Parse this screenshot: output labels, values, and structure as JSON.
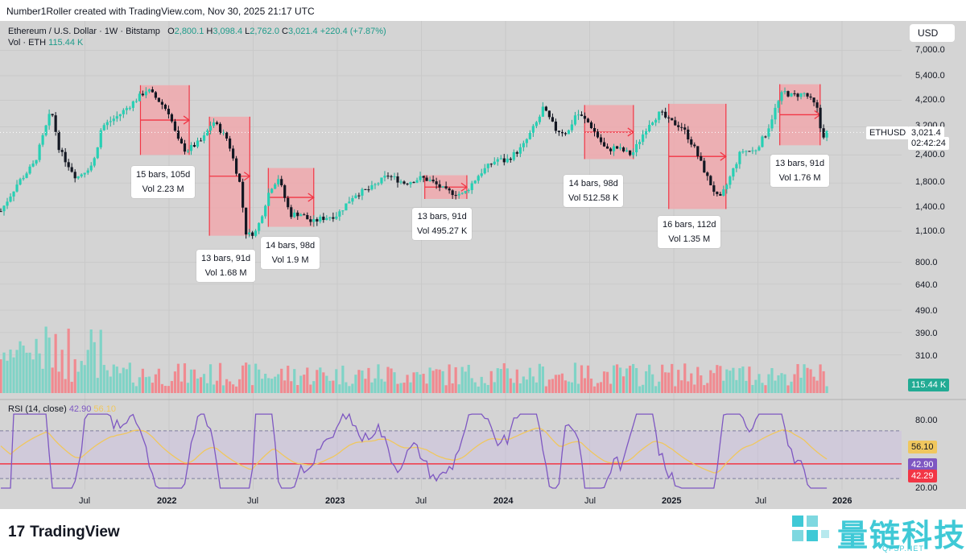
{
  "header": {
    "text": "Number1Roller created with TradingView.com, Nov 30, 2025 21:17 UTC"
  },
  "legend": {
    "symbol": "Ethereum / U.S. Dollar · 1W · Bitstamp",
    "o_label": "O",
    "o": "2,800.1",
    "h_label": "H",
    "h": "3,098.4",
    "l_label": "L",
    "l": "2,762.0",
    "c_label": "C",
    "c": "3,021.4",
    "change": "+220.4 (+7.87%)",
    "vol_label": "Vol · ETH",
    "vol": "115.44 K"
  },
  "currency_button": "USD",
  "price_tag": {
    "symbol": "ETHUSD",
    "price": "3,021.4",
    "countdown": "02:42:24"
  },
  "volume_tag": "115.44 K",
  "rsi": {
    "label": "RSI (14, close)",
    "value": "42.90",
    "ma": "56.10",
    "tags": [
      "56.10",
      "42.90",
      "42.29"
    ]
  },
  "colors": {
    "up": "#22ab94",
    "down": "#f23645",
    "box": "#f4a3a8",
    "rsi": "#7e57c2",
    "rsi_ma": "#f0c75e",
    "watermark": "#3fc9d6"
  },
  "footer": {
    "logo": "TradingView",
    "watermark": "量链科技",
    "watermark_sub": "QFSP.NET"
  },
  "chart_data": {
    "type": "candlestick",
    "title": "Ethereum / U.S. Dollar · 1W · Bitstamp",
    "scale": "log",
    "y_ticks": [
      7000,
      5400,
      4200,
      3200,
      2400,
      1800,
      1400,
      1100,
      800,
      640,
      490,
      390,
      310
    ],
    "y_tick_labels": [
      "7,000.0",
      "5,400.0",
      "4,200.0",
      "3,200.0",
      "2,400.0",
      "1,800.0",
      "1,400.0",
      "1,100.0",
      "800.0",
      "640.0",
      "490.0",
      "390.0",
      "310.0"
    ],
    "x_tick_labels": [
      "Jul",
      "2022",
      "Jul",
      "2023",
      "Jul",
      "2024",
      "Jul",
      "2025",
      "Jul",
      "2026"
    ],
    "rsi_ticks": [
      "80.00",
      "20.00"
    ],
    "price_path": [
      [
        2021.0,
        1350
      ],
      [
        2021.1,
        1800
      ],
      [
        2021.2,
        2200
      ],
      [
        2021.3,
        3800
      ],
      [
        2021.35,
        2500
      ],
      [
        2021.45,
        1900
      ],
      [
        2021.55,
        2200
      ],
      [
        2021.6,
        3200
      ],
      [
        2021.7,
        3600
      ],
      [
        2021.8,
        4200
      ],
      [
        2021.87,
        4700
      ],
      [
        2021.95,
        4100
      ],
      [
        2022.0,
        3700
      ],
      [
        2022.05,
        2800
      ],
      [
        2022.1,
        2500
      ],
      [
        2022.2,
        2800
      ],
      [
        2022.26,
        3400
      ],
      [
        2022.35,
        2800
      ],
      [
        2022.42,
        1800
      ],
      [
        2022.46,
        1050
      ],
      [
        2022.52,
        1100
      ],
      [
        2022.6,
        1700
      ],
      [
        2022.65,
        1900
      ],
      [
        2022.72,
        1300
      ],
      [
        2022.78,
        1320
      ],
      [
        2022.85,
        1200
      ],
      [
        2022.9,
        1250
      ],
      [
        2023.0,
        1300
      ],
      [
        2023.1,
        1600
      ],
      [
        2023.2,
        1700
      ],
      [
        2023.3,
        1950
      ],
      [
        2023.4,
        1800
      ],
      [
        2023.5,
        1900
      ],
      [
        2023.55,
        1850
      ],
      [
        2023.65,
        1650
      ],
      [
        2023.75,
        1600
      ],
      [
        2023.85,
        2000
      ],
      [
        2023.95,
        2300
      ],
      [
        2024.0,
        2250
      ],
      [
        2024.1,
        2600
      ],
      [
        2024.2,
        3500
      ],
      [
        2024.22,
        3900
      ],
      [
        2024.3,
        3100
      ],
      [
        2024.37,
        3000
      ],
      [
        2024.42,
        3700
      ],
      [
        2024.5,
        3300
      ],
      [
        2024.6,
        2500
      ],
      [
        2024.65,
        2600
      ],
      [
        2024.75,
        2400
      ],
      [
        2024.85,
        3300
      ],
      [
        2024.92,
        3700
      ],
      [
        2024.97,
        3400
      ],
      [
        2025.05,
        3200
      ],
      [
        2025.12,
        2600
      ],
      [
        2025.2,
        1900
      ],
      [
        2025.27,
        1500
      ],
      [
        2025.32,
        1800
      ],
      [
        2025.4,
        2500
      ],
      [
        2025.48,
        2500
      ],
      [
        2025.55,
        3000
      ],
      [
        2025.6,
        3800
      ],
      [
        2025.65,
        4600
      ],
      [
        2025.7,
        4400
      ],
      [
        2025.78,
        4500
      ],
      [
        2025.85,
        3900
      ],
      [
        2025.88,
        2900
      ],
      [
        2025.91,
        3021
      ]
    ],
    "drawdowns": [
      {
        "bars": "15 bars, 105d",
        "vol": "Vol 2.23 M"
      },
      {
        "bars": "13 bars, 91d",
        "vol": "Vol 1.68 M"
      },
      {
        "bars": "14 bars, 98d",
        "vol": "Vol 1.9 M"
      },
      {
        "bars": "13 bars, 91d",
        "vol": "Vol 495.27 K"
      },
      {
        "bars": "14 bars, 98d",
        "vol": "Vol 512.58 K"
      },
      {
        "bars": "16 bars, 112d",
        "vol": "Vol 1.35 M"
      },
      {
        "bars": "13 bars, 91d",
        "vol": "Vol 1.76 M"
      }
    ]
  }
}
